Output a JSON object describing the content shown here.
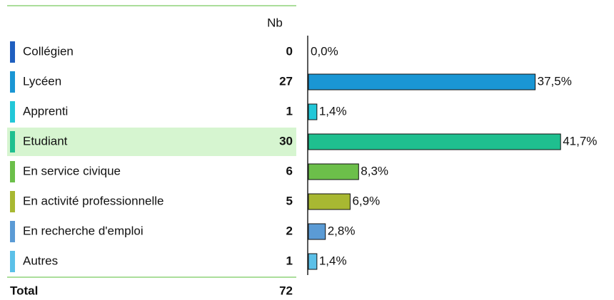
{
  "chart_data": {
    "type": "bar",
    "column_header": "Nb",
    "categories": [
      "Collégien",
      "Lycéen",
      "Apprenti",
      "Etudiant",
      "En service civique",
      "En activité professionnelle",
      "En recherche d'emploi",
      "Autres"
    ],
    "counts": [
      0,
      27,
      1,
      30,
      6,
      5,
      2,
      1
    ],
    "values": [
      0.0,
      37.5,
      1.4,
      41.7,
      8.3,
      6.9,
      2.8,
      1.4
    ],
    "value_labels": [
      "0,0%",
      "37,5%",
      "1,4%",
      "41,7%",
      "8,3%",
      "6,9%",
      "2,8%",
      "1,4%"
    ],
    "colors": [
      "#1f5fbf",
      "#1a96d4",
      "#22c7d8",
      "#1fbf8f",
      "#6cbf4a",
      "#a8b832",
      "#5b9bd5",
      "#5bc0e8"
    ],
    "highlight_index": 3,
    "total_label": "Total",
    "total": 72
  }
}
